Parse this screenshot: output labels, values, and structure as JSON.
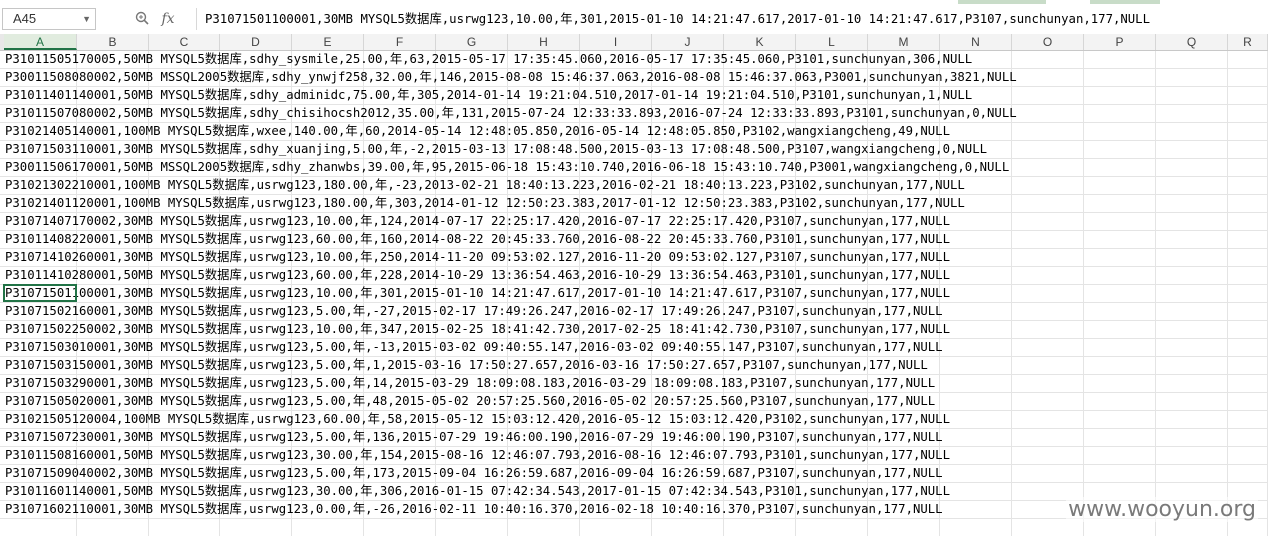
{
  "name_box": {
    "value": "A45"
  },
  "formula_bar": {
    "fx_label": "fx",
    "value": "P31071501100001,30MB MYSQL5数据库,usrwg123,10.00,年,301,2015-01-10 14:21:47.617,2017-01-10 14:21:47.617,P3107,sunchunyan,177,NULL"
  },
  "columns": [
    "A",
    "B",
    "C",
    "D",
    "E",
    "F",
    "G",
    "H",
    "I",
    "J",
    "K",
    "L",
    "M",
    "N",
    "O",
    "P",
    "Q",
    "R"
  ],
  "active_column": "A",
  "rows": [
    "P31011505170005,50MB MYSQL5数据库,sdhy_sysmile,25.00,年,63,2015-05-17 17:35:45.060,2016-05-17 17:35:45.060,P3101,sunchunyan,306,NULL",
    "P30011508080002,50MB MSSQL2005数据库,sdhy_ynwjf258,32.00,年,146,2015-08-08 15:46:37.063,2016-08-08 15:46:37.063,P3001,sunchunyan,3821,NULL",
    "P31011401140001,50MB MYSQL5数据库,sdhy_adminidc,75.00,年,305,2014-01-14 19:21:04.510,2017-01-14 19:21:04.510,P3101,sunchunyan,1,NULL",
    "P31011507080002,50MB MYSQL5数据库,sdhy_chisihocsh2012,35.00,年,131,2015-07-24 12:33:33.893,2016-07-24 12:33:33.893,P3101,sunchunyan,0,NULL",
    "P31021405140001,100MB MYSQL5数据库,wxee,140.00,年,60,2014-05-14 12:48:05.850,2016-05-14 12:48:05.850,P3102,wangxiangcheng,49,NULL",
    "P31071503110001,30MB MYSQL5数据库,sdhy_xuanjing,5.00,年,-2,2015-03-13 17:08:48.500,2015-03-13 17:08:48.500,P3107,wangxiangcheng,0,NULL",
    "P30011506170001,50MB MSSQL2005数据库,sdhy_zhanwbs,39.00,年,95,2015-06-18 15:43:10.740,2016-06-18 15:43:10.740,P3001,wangxiangcheng,0,NULL",
    "P31021302210001,100MB MYSQL5数据库,usrwg123,180.00,年,-23,2013-02-21 18:40:13.223,2016-02-21 18:40:13.223,P3102,sunchunyan,177,NULL",
    "P31021401120001,100MB MYSQL5数据库,usrwg123,180.00,年,303,2014-01-12 12:50:23.383,2017-01-12 12:50:23.383,P3102,sunchunyan,177,NULL",
    "P31071407170002,30MB MYSQL5数据库,usrwg123,10.00,年,124,2014-07-17 22:25:17.420,2016-07-17 22:25:17.420,P3107,sunchunyan,177,NULL",
    "P31011408220001,50MB MYSQL5数据库,usrwg123,60.00,年,160,2014-08-22 20:45:33.760,2016-08-22 20:45:33.760,P3101,sunchunyan,177,NULL",
    "P31071410260001,30MB MYSQL5数据库,usrwg123,10.00,年,250,2014-11-20 09:53:02.127,2016-11-20 09:53:02.127,P3107,sunchunyan,177,NULL",
    "P31011410280001,50MB MYSQL5数据库,usrwg123,60.00,年,228,2014-10-29 13:36:54.463,2016-10-29 13:36:54.463,P3101,sunchunyan,177,NULL",
    "P31071501100001,30MB MYSQL5数据库,usrwg123,10.00,年,301,2015-01-10 14:21:47.617,2017-01-10 14:21:47.617,P3107,sunchunyan,177,NULL",
    "P31071502160001,30MB MYSQL5数据库,usrwg123,5.00,年,-27,2015-02-17 17:49:26.247,2016-02-17 17:49:26.247,P3107,sunchunyan,177,NULL",
    "P31071502250002,30MB MYSQL5数据库,usrwg123,10.00,年,347,2015-02-25 18:41:42.730,2017-02-25 18:41:42.730,P3107,sunchunyan,177,NULL",
    "P31071503010001,30MB MYSQL5数据库,usrwg123,5.00,年,-13,2015-03-02 09:40:55.147,2016-03-02 09:40:55.147,P3107,sunchunyan,177,NULL",
    "P31071503150001,30MB MYSQL5数据库,usrwg123,5.00,年,1,2015-03-16 17:50:27.657,2016-03-16 17:50:27.657,P3107,sunchunyan,177,NULL",
    "P31071503290001,30MB MYSQL5数据库,usrwg123,5.00,年,14,2015-03-29 18:09:08.183,2016-03-29 18:09:08.183,P3107,sunchunyan,177,NULL",
    "P31071505020001,30MB MYSQL5数据库,usrwg123,5.00,年,48,2015-05-02 20:57:25.560,2016-05-02 20:57:25.560,P3107,sunchunyan,177,NULL",
    "P31021505120004,100MB MYSQL5数据库,usrwg123,60.00,年,58,2015-05-12 15:03:12.420,2016-05-12 15:03:12.420,P3102,sunchunyan,177,NULL",
    "P31071507230001,30MB MYSQL5数据库,usrwg123,5.00,年,136,2015-07-29 19:46:00.190,2016-07-29 19:46:00.190,P3107,sunchunyan,177,NULL",
    "P31011508160001,50MB MYSQL5数据库,usrwg123,30.00,年,154,2015-08-16 12:46:07.793,2016-08-16 12:46:07.793,P3101,sunchunyan,177,NULL",
    "P31071509040002,30MB MYSQL5数据库,usrwg123,5.00,年,173,2015-09-04 16:26:59.687,2016-09-04 16:26:59.687,P3107,sunchunyan,177,NULL",
    "P31011601140001,50MB MYSQL5数据库,usrwg123,30.00,年,306,2016-01-15 07:42:34.543,2017-01-15 07:42:34.543,P3101,sunchunyan,177,NULL",
    "P31071602110001,30MB MYSQL5数据库,usrwg123,0.00,年,-26,2016-02-11 10:40:16.370,2016-02-18 10:40:16.370,P3107,sunchunyan,177,NULL"
  ],
  "selected_row_index": 13,
  "watermark": "www.wooyun.org",
  "colors": {
    "selection": "#217346",
    "header_bg": "#f3f3f3",
    "grid_line": "#e4e4e4"
  }
}
